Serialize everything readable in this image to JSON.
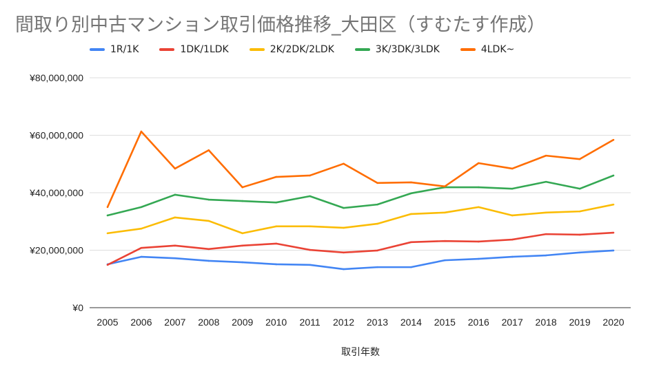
{
  "chart_data": {
    "type": "line",
    "title": "間取り別中古マンション取引価格推移_大田区（すむたす作成）",
    "xlabel": "取引年数",
    "ylabel": "",
    "ylim": [
      0,
      80000000
    ],
    "yticks": [
      0,
      20000000,
      40000000,
      60000000,
      80000000
    ],
    "ytick_labels": [
      "¥0",
      "¥20,000,000",
      "¥40,000,000",
      "¥60,000,000",
      "¥80,000,000"
    ],
    "grid": true,
    "legend_position": "top",
    "x": [
      "2005",
      "2006",
      "2007",
      "2008",
      "2009",
      "2010",
      "2011",
      "2012",
      "2013",
      "2014",
      "2015",
      "2016",
      "2017",
      "2018",
      "2019",
      "2020"
    ],
    "series": [
      {
        "name": "1R/1K",
        "color": "#4285f4",
        "values": [
          15100000,
          17700000,
          17200000,
          16300000,
          15800000,
          15100000,
          14900000,
          13400000,
          14100000,
          14100000,
          16500000,
          17000000,
          17700000,
          18200000,
          19200000,
          19900000
        ]
      },
      {
        "name": "1DK/1LDK",
        "color": "#ea4335",
        "values": [
          14900000,
          20800000,
          21600000,
          20400000,
          21600000,
          22300000,
          20100000,
          19200000,
          19900000,
          22800000,
          23200000,
          23000000,
          23700000,
          25600000,
          25400000,
          26100000
        ]
      },
      {
        "name": "2K/2DK/2LDK",
        "color": "#fbbc04",
        "values": [
          25900000,
          27500000,
          31400000,
          30200000,
          25900000,
          28300000,
          28300000,
          27800000,
          29200000,
          32600000,
          33100000,
          35000000,
          32100000,
          33100000,
          33500000,
          35900000
        ]
      },
      {
        "name": "3K/3DK/3LDK",
        "color": "#34a853",
        "values": [
          32100000,
          35000000,
          39300000,
          37600000,
          37100000,
          36600000,
          38800000,
          34700000,
          35900000,
          39800000,
          41900000,
          41900000,
          41400000,
          43800000,
          41400000,
          46000000
        ]
      },
      {
        "name": "4LDK~",
        "color": "#ff6d01",
        "values": [
          35000000,
          61300000,
          48400000,
          54800000,
          41900000,
          45500000,
          46000000,
          50100000,
          43400000,
          43600000,
          42200000,
          50300000,
          48400000,
          52900000,
          51700000,
          58400000
        ]
      }
    ]
  }
}
